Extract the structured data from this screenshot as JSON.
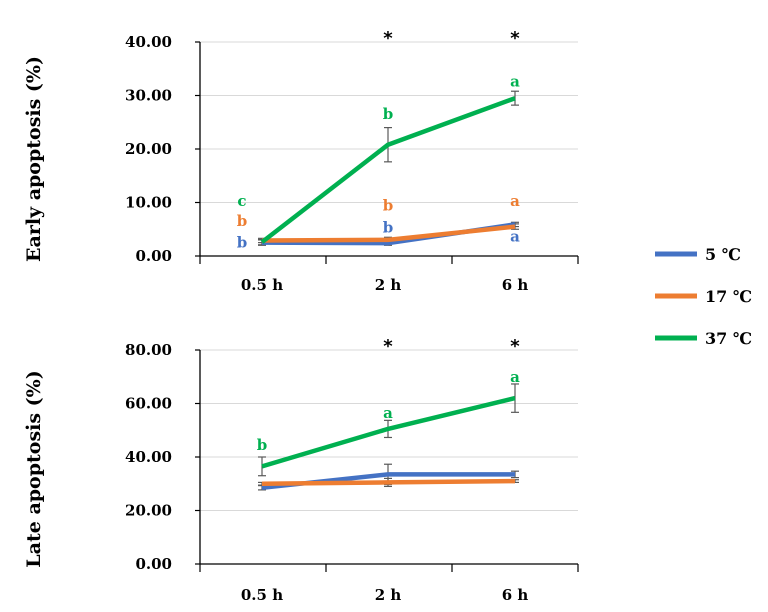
{
  "colors": {
    "5C": "#4472C4",
    "17C": "#ED7D31",
    "37C": "#00B050",
    "grid": "#D9D9D9",
    "axis": "#000000",
    "error": "#595959"
  },
  "legend": [
    {
      "label": "5 ℃",
      "color_key": "5C"
    },
    {
      "label": "17 ℃",
      "color_key": "17C"
    },
    {
      "label": "37 ℃",
      "color_key": "37C"
    }
  ],
  "chart_data": [
    {
      "type": "line",
      "ylabel": "Early apoptosis (%)",
      "xlabel": "",
      "categories": [
        "0.5 h",
        "2 h",
        "6 h"
      ],
      "ylim": [
        0,
        40
      ],
      "yticks": [
        "0.00",
        "10.00",
        "20.00",
        "30.00",
        "40.00"
      ],
      "grid": true,
      "series": [
        {
          "name": "5 ℃",
          "color_key": "5C",
          "values": [
            2.5,
            2.4,
            5.9
          ],
          "errors": [
            0.5,
            0.4,
            0.4
          ],
          "letters": [
            "b",
            "b",
            "a"
          ],
          "letter_values": [
            2.5,
            5.3,
            3.6
          ]
        },
        {
          "name": "17 ℃",
          "color_key": "17C",
          "values": [
            2.9,
            3.0,
            5.5
          ],
          "errors": [
            0.4,
            0.5,
            0.5
          ],
          "letters": [
            "b",
            "b",
            "a"
          ],
          "letter_values": [
            6.5,
            9.4,
            10.3
          ]
        },
        {
          "name": "37 ℃",
          "color_key": "37C",
          "values": [
            2.6,
            20.8,
            29.5
          ],
          "errors": [
            0.5,
            3.2,
            1.3
          ],
          "letters": [
            "c",
            "b",
            "a"
          ],
          "letter_values": [
            10.3,
            26.5,
            32.6
          ]
        }
      ],
      "significance": [
        "",
        "*",
        "*"
      ]
    },
    {
      "type": "line",
      "ylabel": "Late apoptosis (%)",
      "xlabel": "",
      "categories": [
        "0.5 h",
        "2 h",
        "6 h"
      ],
      "ylim": [
        0,
        80
      ],
      "yticks": [
        "0.00",
        "20.00",
        "40.00",
        "60.00",
        "80.00"
      ],
      "grid": true,
      "series": [
        {
          "name": "5 ℃",
          "color_key": "5C",
          "values": [
            28.5,
            33.5,
            33.5
          ],
          "errors": [
            0.8,
            3.8,
            1.2
          ],
          "letters": [
            "",
            "",
            ""
          ],
          "letter_values": [
            0,
            0,
            0
          ]
        },
        {
          "name": "17 ℃",
          "color_key": "17C",
          "values": [
            30.0,
            30.5,
            31.0
          ],
          "errors": [
            0.5,
            1.5,
            0.5
          ],
          "letters": [
            "",
            "",
            ""
          ],
          "letter_values": [
            0,
            0,
            0
          ]
        },
        {
          "name": "37 ℃",
          "color_key": "37C",
          "values": [
            36.5,
            50.5,
            62.0
          ],
          "errors": [
            3.5,
            3.2,
            5.3
          ],
          "letters": [
            "b",
            "a",
            "a"
          ],
          "letter_values": [
            44.5,
            56.5,
            70.0
          ]
        }
      ],
      "significance": [
        "",
        "*",
        "*"
      ]
    }
  ]
}
